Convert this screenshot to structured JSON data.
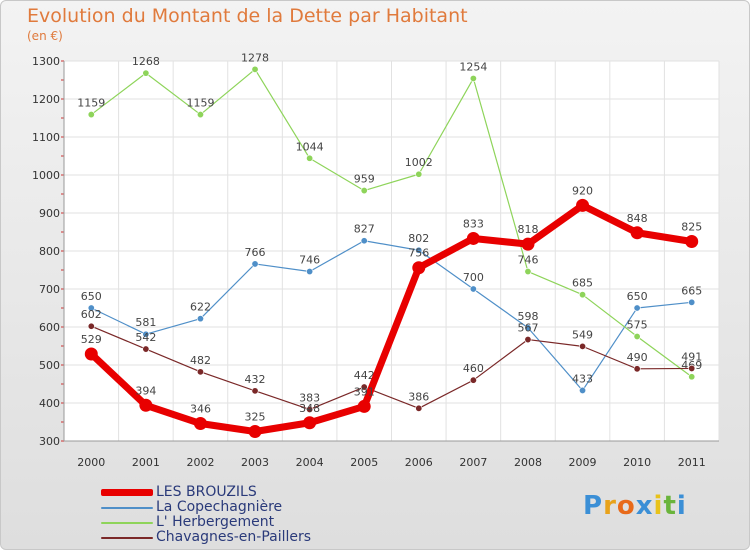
{
  "chart_data": {
    "type": "line",
    "title": "Evolution du Montant de la Dette par Habitant",
    "subtitle": "(en €)",
    "xlabel": "",
    "ylabel": "",
    "x": [
      "2000",
      "2001",
      "2002",
      "2003",
      "2004",
      "2005",
      "2006",
      "2007",
      "2008",
      "2009",
      "2010",
      "2011"
    ],
    "ylim": [
      300,
      1300
    ],
    "yticks": [
      300,
      400,
      500,
      600,
      700,
      800,
      900,
      1000,
      1100,
      1200,
      1300
    ],
    "grid": true,
    "legend_position": "bottom-left",
    "series": [
      {
        "name": "LES BROUZILS",
        "color": "#e80000",
        "values": [
          529,
          394,
          346,
          325,
          348,
          391,
          756,
          833,
          818,
          920,
          848,
          825
        ],
        "labels": [
          "529",
          "394",
          "346",
          "325",
          "348",
          "391",
          "756",
          "833",
          "818",
          "920",
          "848",
          "825"
        ]
      },
      {
        "name": "La Copechagnière",
        "color": "#4f8fc8",
        "values": [
          650,
          581,
          622,
          766,
          746,
          827,
          802,
          700,
          598,
          433,
          650,
          665
        ],
        "labels": [
          "650",
          "581",
          "622",
          "766",
          "746",
          "827",
          "802",
          "700",
          "598",
          "433",
          "650",
          "665"
        ]
      },
      {
        "name": "L' Herbergement",
        "color": "#8ed45a",
        "values": [
          1159,
          1268,
          1159,
          1278,
          1044,
          959,
          1002,
          1254,
          746,
          685,
          575,
          469
        ],
        "labels": [
          "1159",
          "1268",
          "1159",
          "1278",
          "1044",
          "959",
          "1002",
          "1254",
          "746",
          "685",
          "575",
          "469"
        ]
      },
      {
        "name": "Chavagnes-en-Paillers",
        "color": "#7a2828",
        "values": [
          602,
          542,
          482,
          432,
          383,
          442,
          386,
          460,
          567,
          549,
          490,
          491
        ],
        "labels": [
          "602",
          "542",
          "482",
          "432",
          "383",
          "442",
          "386",
          "460",
          "567",
          "549",
          "490",
          "491"
        ]
      }
    ]
  },
  "logo": {
    "text": "Proxiti",
    "letters": [
      "P",
      "r",
      "o",
      "x",
      "i",
      "t",
      "i"
    ],
    "colors": [
      "#3b8fd6",
      "#e8a21a",
      "#e86a1a",
      "#3b8fd6",
      "#e8c21a",
      "#6ab43b",
      "#3b8fd6"
    ]
  }
}
